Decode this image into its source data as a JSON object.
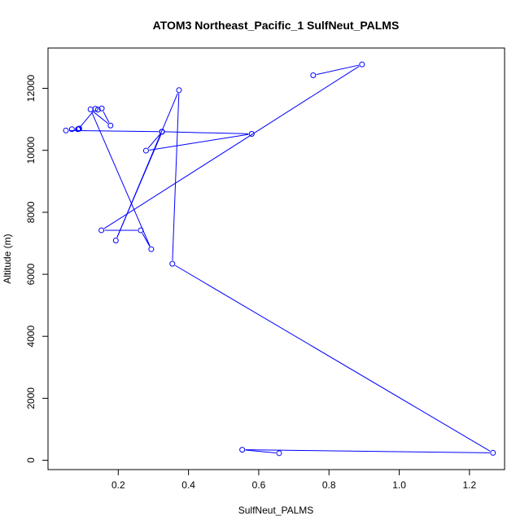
{
  "chart_data": {
    "type": "line",
    "title": "ATOM3 Northeast_Pacific_1 SulfNeut_PALMS",
    "xlabel": "SulfNeut_PALMS",
    "ylabel": "Altitude (m)",
    "xlim": [
      0.0,
      1.3
    ],
    "ylim": [
      -300,
      13300
    ],
    "x_ticks": [
      0.2,
      0.4,
      0.6,
      0.8,
      1.0,
      1.2
    ],
    "x_tick_labels": [
      "0.2",
      "0.4",
      "0.6",
      "0.8",
      "1.0",
      "1.2"
    ],
    "y_ticks": [
      0,
      2000,
      4000,
      6000,
      8000,
      10000,
      12000
    ],
    "y_tick_labels": [
      "0",
      "2000",
      "4000",
      "6000",
      "8000",
      "10000",
      "12000"
    ],
    "grid": false,
    "line_color": "#0000ff",
    "marker": "open-circle",
    "series": [
      {
        "x": [
          0.755,
          0.894,
          0.152,
          0.264,
          0.294,
          0.121,
          0.178,
          0.153,
          0.142,
          0.135,
          0.087,
          0.089,
          0.085,
          0.068,
          0.051,
          0.324,
          0.58,
          0.279,
          0.325,
          0.193,
          0.373,
          0.354,
          1.267,
          0.553,
          0.658
        ],
        "y": [
          12420,
          12770,
          7420,
          7420,
          6810,
          11320,
          10800,
          11350,
          11310,
          11340,
          10690,
          10700,
          10680,
          10680,
          10640,
          10600,
          10530,
          9990,
          10600,
          7090,
          11940,
          6340,
          240,
          340,
          230
        ]
      }
    ]
  }
}
